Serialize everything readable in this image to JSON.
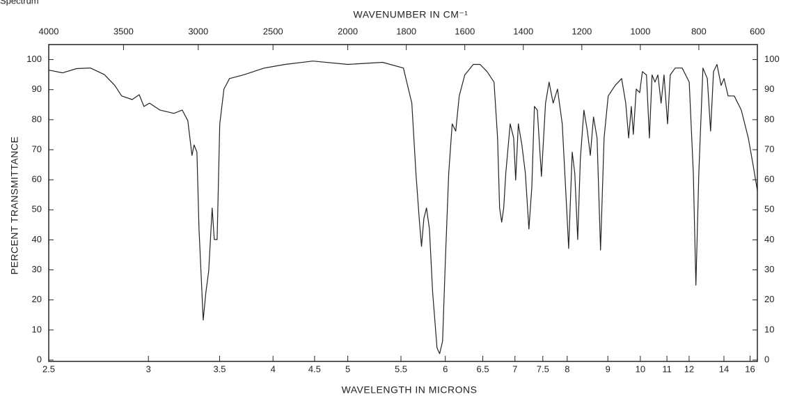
{
  "chart_data": {
    "type": "line",
    "title": "Spectrum",
    "x2label": "WAVENUMBER IN CM⁻¹",
    "xlabel": "WAVELENGTH IN MICRONS",
    "ylabel": "PERCENT TRANSMITTANCE",
    "xlim": [
      4000,
      600
    ],
    "xticks": [
      4000,
      3500,
      3000,
      2500,
      2000,
      1800,
      1600,
      1400,
      1200,
      1000,
      800,
      600
    ],
    "x2ticks": [
      2.5,
      3,
      3.5,
      4,
      4.5,
      5,
      5.5,
      6,
      6.5,
      7,
      7.5,
      8,
      9,
      10,
      11,
      12,
      14,
      16
    ],
    "ylim": [
      0,
      105
    ],
    "yticks": [
      0,
      10,
      20,
      30,
      40,
      50,
      60,
      70,
      80,
      90,
      100
    ],
    "series": [
      {
        "color": "#222222",
        "x": [
          4000,
          3907,
          3814,
          3721,
          3628,
          3558,
          3512,
          3442,
          3395,
          3363,
          3326,
          3256,
          3163,
          3107,
          3070,
          3042,
          3028,
          3009,
          2995,
          2967,
          2949,
          2930,
          2907,
          2893,
          2874,
          2856,
          2828,
          2791,
          2698,
          2558,
          2419,
          2233,
          2000,
          1881,
          1810,
          1781,
          1767,
          1755,
          1748,
          1740,
          1731,
          1721,
          1710,
          1695,
          1686,
          1676,
          1667,
          1655,
          1643,
          1631,
          1619,
          1600,
          1571,
          1548,
          1524,
          1500,
          1488,
          1481,
          1474,
          1467,
          1460,
          1445,
          1433,
          1426,
          1417,
          1405,
          1393,
          1381,
          1371,
          1362,
          1352,
          1338,
          1324,
          1312,
          1298,
          1283,
          1267,
          1252,
          1245,
          1233,
          1224,
          1214,
          1205,
          1193,
          1181,
          1171,
          1160,
          1148,
          1136,
          1124,
          1110,
          1086,
          1064,
          1050,
          1040,
          1031,
          1024,
          1014,
          1002,
          993,
          979,
          969,
          960,
          950,
          940,
          929,
          919,
          907,
          898,
          881,
          857,
          833,
          819,
          810,
          800,
          786,
          771,
          760,
          750,
          738,
          724,
          714,
          700,
          679,
          655,
          631,
          614,
          600
        ],
        "values": [
          96.5,
          95.6,
          97.0,
          97.2,
          95.0,
          91.4,
          87.9,
          86.7,
          88.3,
          84.4,
          85.5,
          83.2,
          82.1,
          83.2,
          79.7,
          68.1,
          71.6,
          69.2,
          43.6,
          13.3,
          22.6,
          29.6,
          50.6,
          40.1,
          40.1,
          78.6,
          90.2,
          93.7,
          94.9,
          97.2,
          98.4,
          99.5,
          98.4,
          99.1,
          97.2,
          85.5,
          62.2,
          45.9,
          37.8,
          47.1,
          50.6,
          43.6,
          22.6,
          4.0,
          2.1,
          6.3,
          31.9,
          62.2,
          78.6,
          76.2,
          87.9,
          94.9,
          98.4,
          98.4,
          96.0,
          92.5,
          73.9,
          50.6,
          45.9,
          50.6,
          62.2,
          78.6,
          73.9,
          59.9,
          78.6,
          71.6,
          62.2,
          43.6,
          57.6,
          84.4,
          83.2,
          61.1,
          85.5,
          92.5,
          85.5,
          90.2,
          78.6,
          50.6,
          37.1,
          69.2,
          62.2,
          40.1,
          66.9,
          83.2,
          76.2,
          68.1,
          80.9,
          73.9,
          36.6,
          73.9,
          87.9,
          91.4,
          93.7,
          85.5,
          73.9,
          84.4,
          75.1,
          90.2,
          89.0,
          96.0,
          94.9,
          73.9,
          94.9,
          92.5,
          94.9,
          85.5,
          94.9,
          78.6,
          94.9,
          97.2,
          97.2,
          92.5,
          62.2,
          24.9,
          62.2,
          97.2,
          93.7,
          76.2,
          96.0,
          98.4,
          91.4,
          93.7,
          87.9,
          87.9,
          83.2,
          73.9,
          64.6,
          56.4
        ]
      }
    ]
  }
}
